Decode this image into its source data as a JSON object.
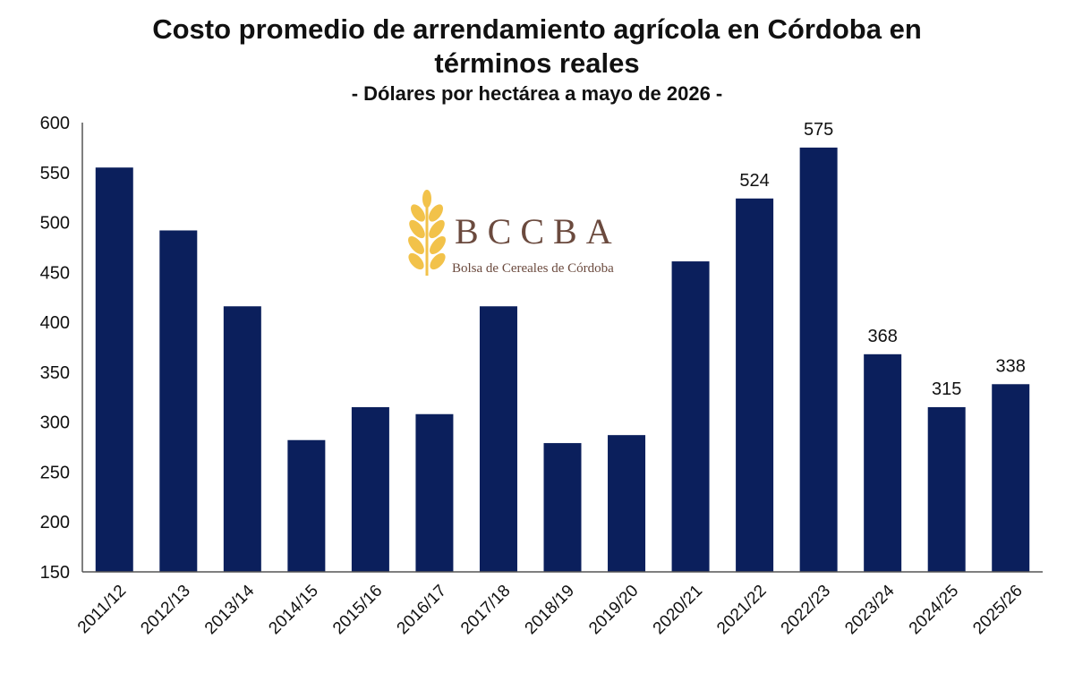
{
  "chart_data": {
    "type": "bar",
    "title": "Costo promedio de arrendamiento agrícola en Córdoba en términos reales",
    "subtitle": "- Dólares por hectárea a mayo de 2026 -",
    "xlabel": "",
    "ylabel": "",
    "categories": [
      "2011/12",
      "2012/13",
      "2013/14",
      "2014/15",
      "2015/16",
      "2016/17",
      "2017/18",
      "2018/19",
      "2019/20",
      "2020/21",
      "2021/22",
      "2022/23",
      "2023/24",
      "2024/25",
      "2025/26"
    ],
    "values": [
      555,
      492,
      416,
      282,
      315,
      308,
      416,
      279,
      287,
      461,
      524,
      575,
      368,
      315,
      338
    ],
    "data_labels": [
      "",
      "",
      "",
      "",
      "",
      "",
      "",
      "",
      "",
      "",
      "524",
      "575",
      "368",
      "315",
      "338"
    ],
    "ylim": [
      150,
      600
    ],
    "yticks": [
      150,
      200,
      250,
      300,
      350,
      400,
      450,
      500,
      550,
      600
    ],
    "grid": false,
    "legend": "none",
    "bar_color": "#0b1f5c"
  },
  "logo": {
    "name": "BCCBA",
    "subtitle": "Bolsa de Cereales de Córdoba",
    "color": "#6b4a3e",
    "icon": "wheat-icon",
    "icon_color": "#f2c24a"
  }
}
